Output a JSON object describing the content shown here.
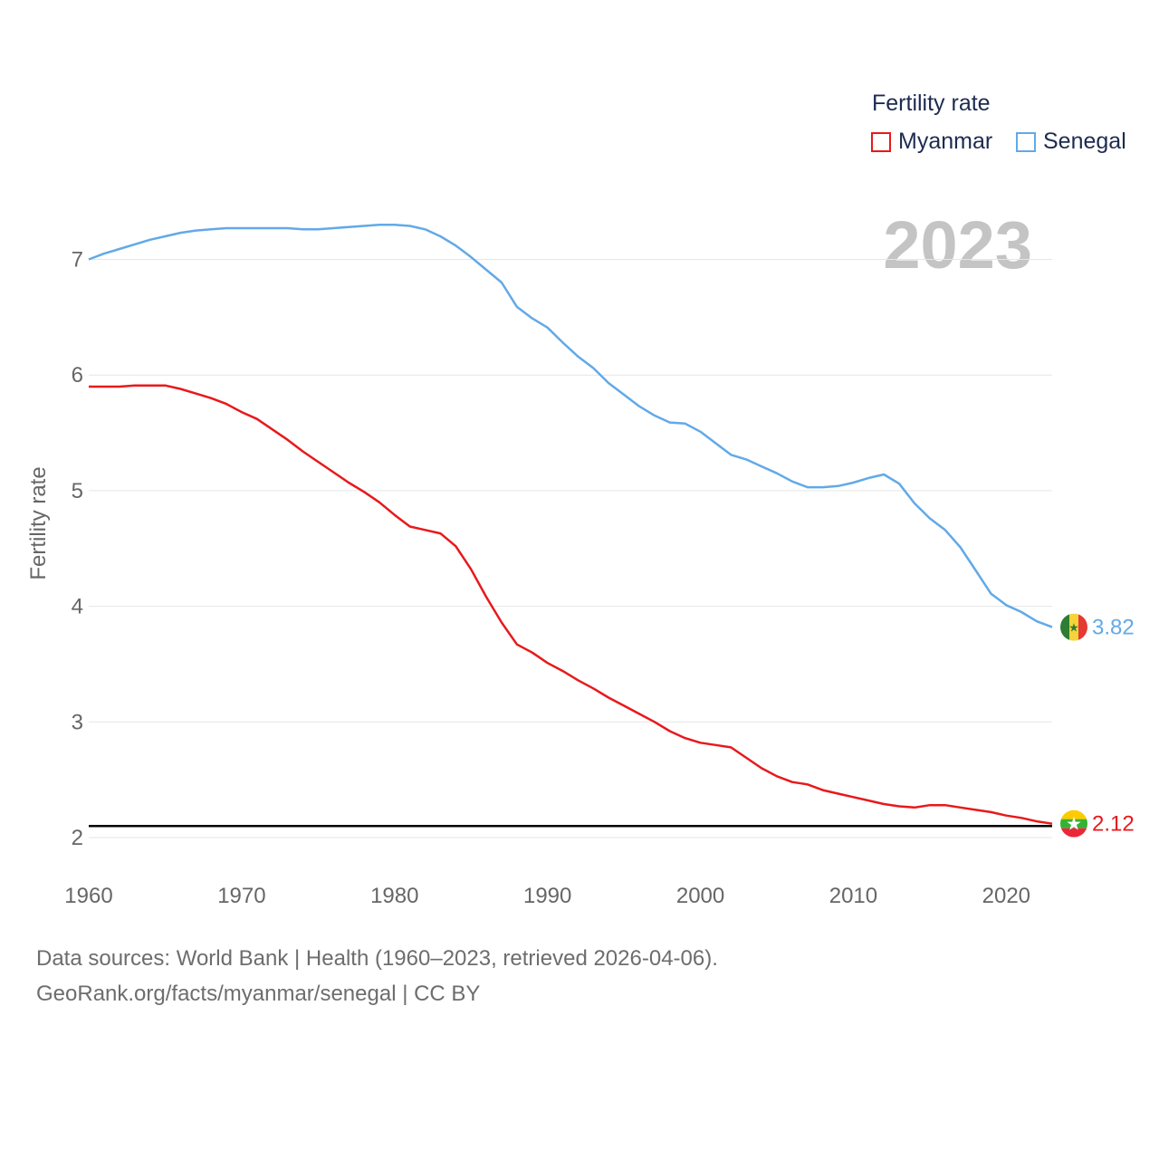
{
  "legend": {
    "title": "Fertility rate",
    "items": [
      {
        "label": "Myanmar",
        "color": "#e8191b"
      },
      {
        "label": "Senegal",
        "color": "#62a9e8"
      }
    ]
  },
  "current_year": "2023",
  "footer": {
    "line1": "Data sources: World Bank | Health (1960–2023, retrieved 2026-04-06).",
    "line2": "GeoRank.org/facts/myanmar/senegal | CC BY"
  },
  "chart_data": {
    "type": "line",
    "ylabel": "Fertility rate",
    "xlabel": "",
    "xlim": [
      1960,
      2023
    ],
    "ylim": [
      1.9,
      7.3
    ],
    "yticks": [
      2,
      3,
      4,
      5,
      6,
      7
    ],
    "xticks": [
      1960,
      1970,
      1980,
      1990,
      2000,
      2010,
      2020
    ],
    "grid": true,
    "reference_line": {
      "value": 2.1,
      "color": "#000000"
    },
    "x": [
      1960,
      1961,
      1962,
      1963,
      1964,
      1965,
      1966,
      1967,
      1968,
      1969,
      1970,
      1971,
      1972,
      1973,
      1974,
      1975,
      1976,
      1977,
      1978,
      1979,
      1980,
      1981,
      1982,
      1983,
      1984,
      1985,
      1986,
      1987,
      1988,
      1989,
      1990,
      1991,
      1992,
      1993,
      1994,
      1995,
      1996,
      1997,
      1998,
      1999,
      2000,
      2001,
      2002,
      2003,
      2004,
      2005,
      2006,
      2007,
      2008,
      2009,
      2010,
      2011,
      2012,
      2013,
      2014,
      2015,
      2016,
      2017,
      2018,
      2019,
      2020,
      2021,
      2022,
      2023
    ],
    "series": [
      {
        "name": "Myanmar",
        "color": "#e8191b",
        "end_label": "2.12",
        "values": [
          5.9,
          5.9,
          5.9,
          5.91,
          5.91,
          5.91,
          5.88,
          5.84,
          5.8,
          5.75,
          5.68,
          5.62,
          5.53,
          5.44,
          5.34,
          5.25,
          5.16,
          5.07,
          4.99,
          4.9,
          4.79,
          4.69,
          4.66,
          4.63,
          4.52,
          4.32,
          4.08,
          3.86,
          3.67,
          3.6,
          3.51,
          3.44,
          3.36,
          3.29,
          3.21,
          3.14,
          3.07,
          3.0,
          2.92,
          2.86,
          2.82,
          2.8,
          2.78,
          2.69,
          2.6,
          2.53,
          2.48,
          2.46,
          2.41,
          2.38,
          2.35,
          2.32,
          2.29,
          2.27,
          2.26,
          2.28,
          2.28,
          2.26,
          2.24,
          2.22,
          2.19,
          2.17,
          2.14,
          2.12
        ]
      },
      {
        "name": "Senegal",
        "color": "#62a9e8",
        "end_label": "3.82",
        "values": [
          7.0,
          7.05,
          7.09,
          7.13,
          7.17,
          7.2,
          7.23,
          7.25,
          7.26,
          7.27,
          7.27,
          7.27,
          7.27,
          7.27,
          7.26,
          7.26,
          7.27,
          7.28,
          7.29,
          7.3,
          7.3,
          7.29,
          7.26,
          7.2,
          7.12,
          7.02,
          6.91,
          6.8,
          6.59,
          6.49,
          6.41,
          6.28,
          6.16,
          6.06,
          5.93,
          5.83,
          5.73,
          5.65,
          5.59,
          5.58,
          5.51,
          5.41,
          5.31,
          5.27,
          5.21,
          5.15,
          5.08,
          5.03,
          5.03,
          5.04,
          5.07,
          5.11,
          5.14,
          5.06,
          4.89,
          4.76,
          4.66,
          4.51,
          4.31,
          4.11,
          4.01,
          3.95,
          3.87,
          3.82
        ]
      }
    ]
  }
}
